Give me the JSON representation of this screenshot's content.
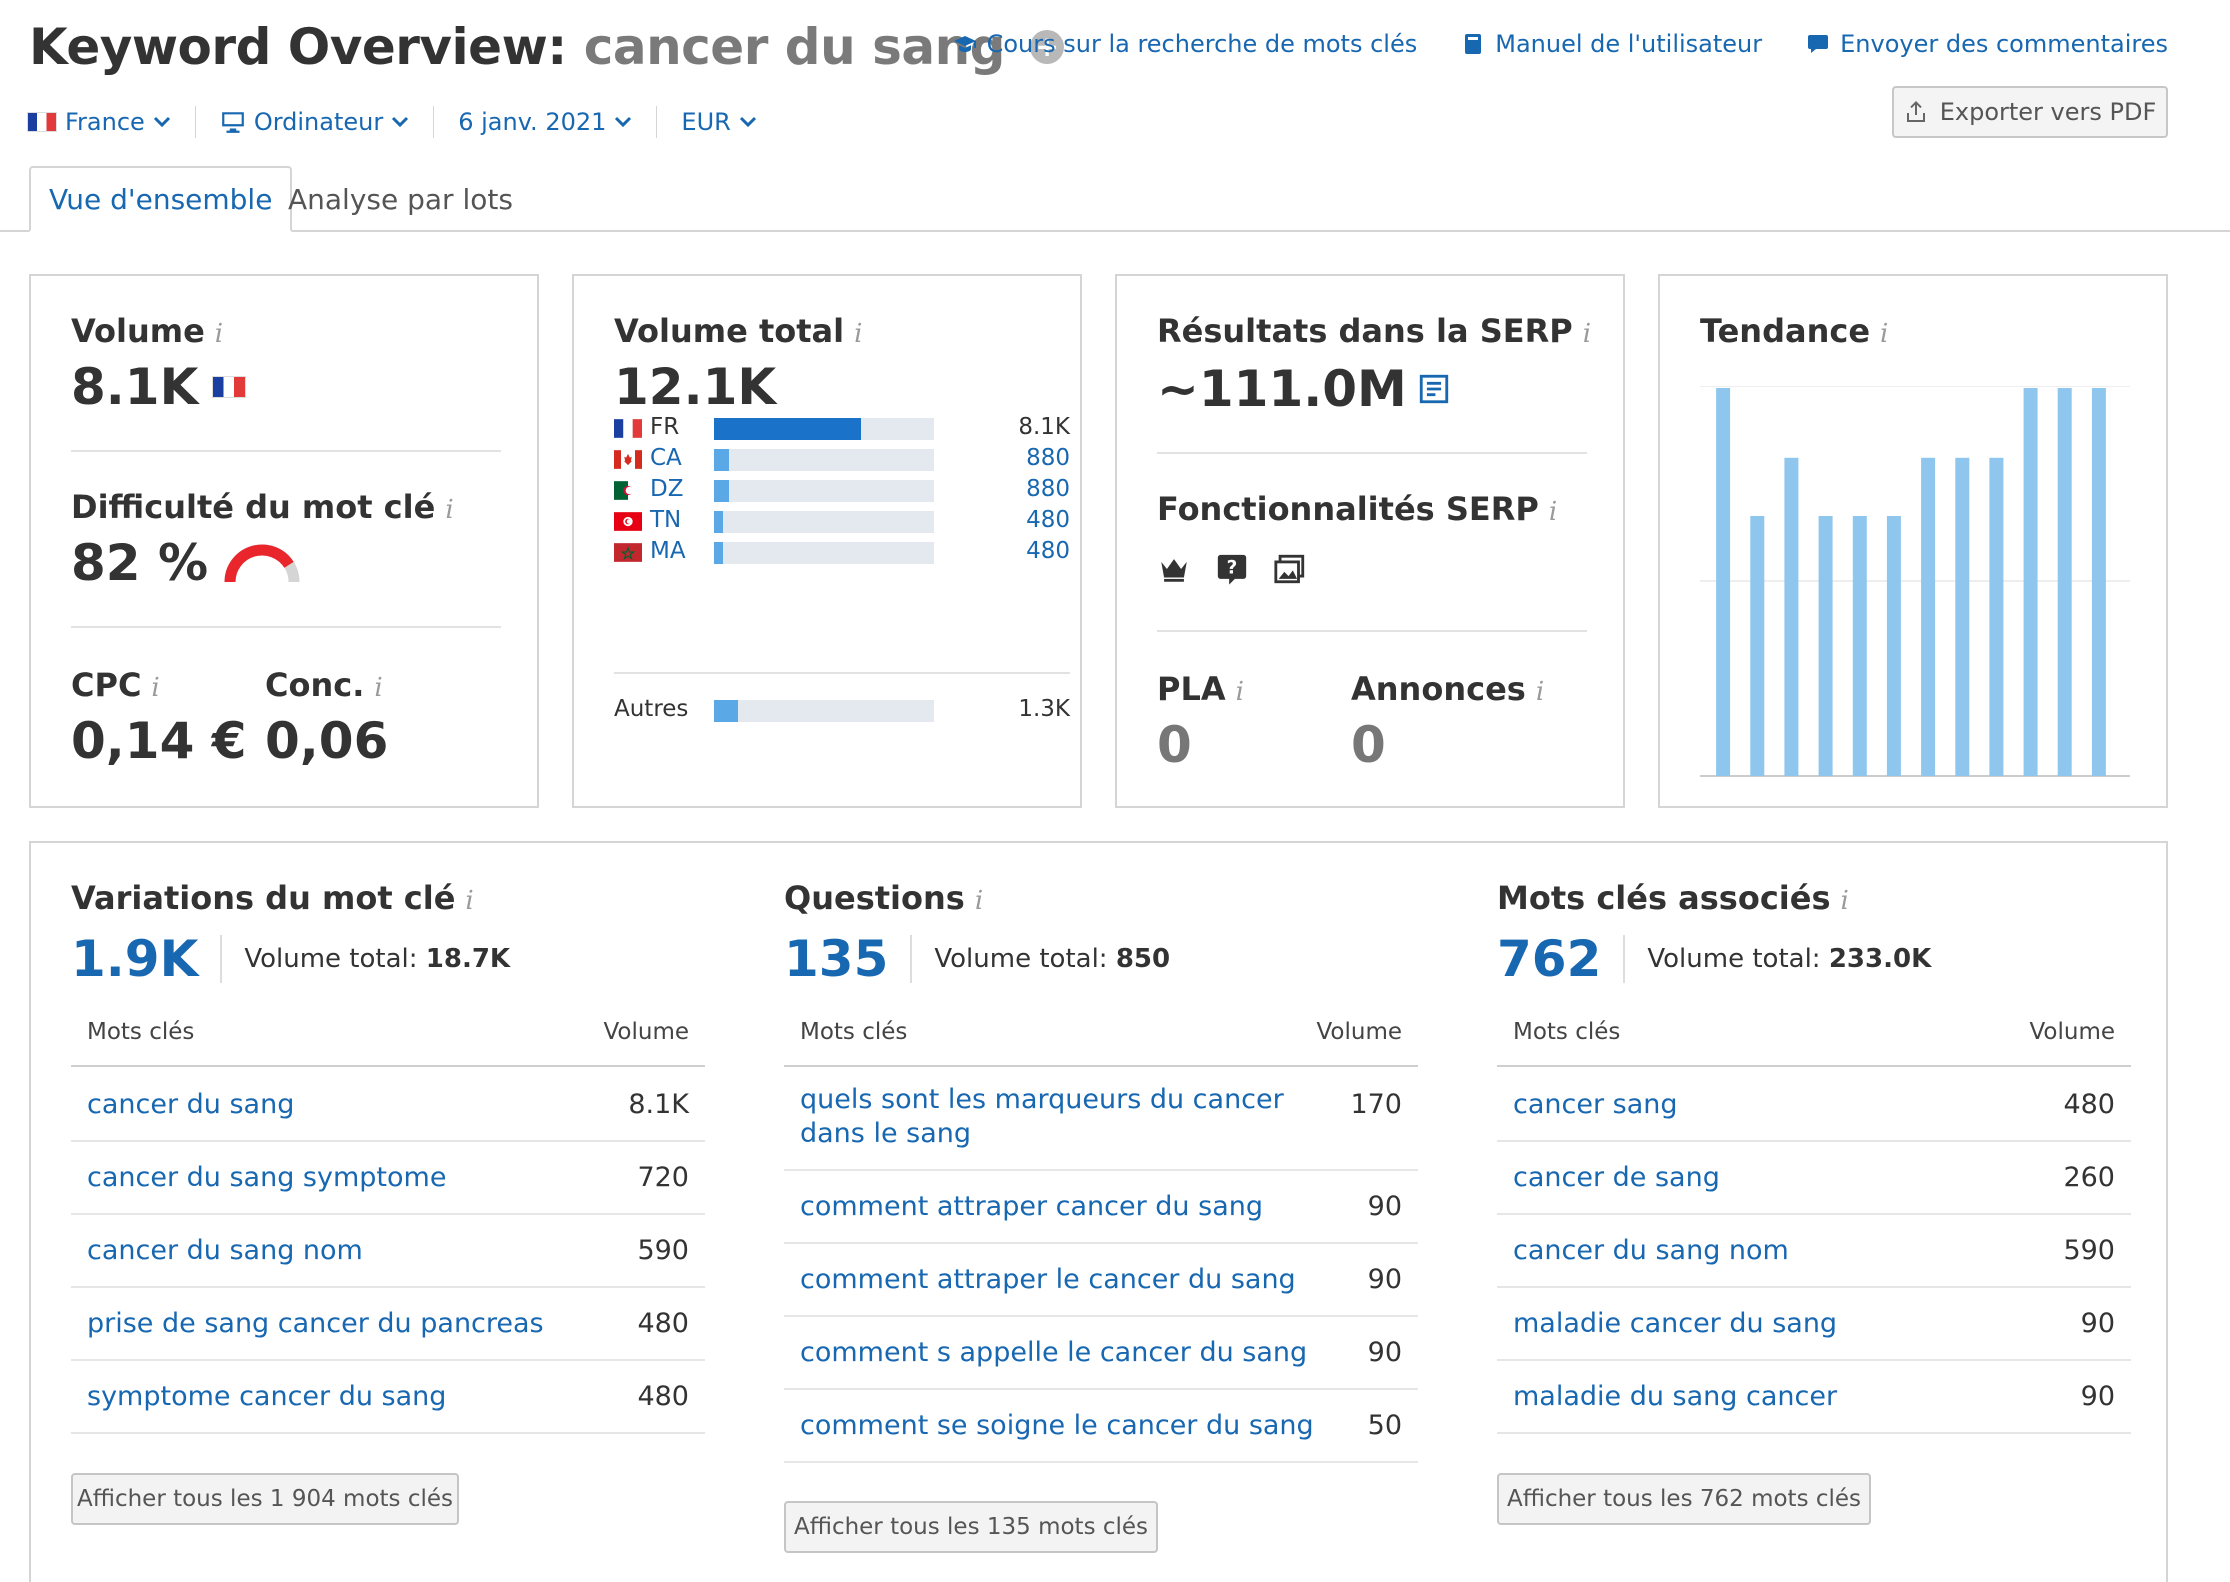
{
  "header": {
    "title_prefix": "Keyword Overview:",
    "keyword": "cancer du sang",
    "add_symbol": "+",
    "links": [
      {
        "label": "Cours sur la recherche de mots clés",
        "icon": "graduation-cap-icon"
      },
      {
        "label": "Manuel de l'utilisateur",
        "icon": "book-icon"
      },
      {
        "label": "Envoyer des commentaires",
        "icon": "speech-bubble-icon"
      }
    ],
    "export_label": "Exporter vers PDF"
  },
  "filters": {
    "country": "France",
    "device": "Ordinateur",
    "date": "6 janv. 2021",
    "currency": "EUR"
  },
  "tabs": [
    {
      "label": "Vue d'ensemble",
      "active": true
    },
    {
      "label": "Analyse par lots",
      "active": false
    }
  ],
  "volume_card": {
    "volume_label": "Volume",
    "volume_value": "8.1K",
    "difficulty_label": "Difficulté du mot clé",
    "difficulty_value": "82 %",
    "difficulty_percent": 82,
    "cpc_label": "CPC",
    "cpc_value": "0,14 €",
    "conc_label": "Conc.",
    "conc_value": "0,06"
  },
  "total_volume_card": {
    "label": "Volume total",
    "value": "12.1K",
    "countries": [
      {
        "code": "FR",
        "value": "8.1K",
        "share": 0.67,
        "flag": "flag-fr"
      },
      {
        "code": "CA",
        "value": "880",
        "share": 0.07,
        "flag": "flag-ca"
      },
      {
        "code": "DZ",
        "value": "880",
        "share": 0.07,
        "flag": "flag-dz"
      },
      {
        "code": "TN",
        "value": "480",
        "share": 0.04,
        "flag": "flag-tn"
      },
      {
        "code": "MA",
        "value": "480",
        "share": 0.04,
        "flag": "flag-ma"
      }
    ],
    "others": {
      "label": "Autres",
      "value": "1.3K",
      "share": 0.11
    }
  },
  "serp_card": {
    "results_label": "Résultats dans la SERP",
    "results_value": "~111.0M",
    "features_label": "Fonctionnalités SERP",
    "feature_icons": [
      "crown-icon",
      "question-icon",
      "image-icon"
    ],
    "pla_label": "PLA",
    "pla_value": "0",
    "ads_label": "Annonces",
    "ads_value": "0"
  },
  "trend_card": {
    "label": "Tendance",
    "bar_color": "#8fc6ee"
  },
  "chart_data": {
    "type": "bar",
    "values": [
      1.0,
      0.67,
      0.82,
      0.67,
      0.67,
      0.67,
      0.82,
      0.82,
      0.82,
      1.0,
      1.0,
      1.0
    ],
    "ylim": [
      0,
      1
    ]
  },
  "variations": {
    "title": "Variations du mot clé",
    "count": "1.9K",
    "total_label": "Volume total:",
    "total_value": "18.7K",
    "col_kw": "Mots clés",
    "col_vol": "Volume",
    "rows": [
      {
        "kw": "cancer du sang",
        "v": "8.1K"
      },
      {
        "kw": "cancer du sang symptome",
        "v": "720"
      },
      {
        "kw": "cancer du sang nom",
        "v": "590"
      },
      {
        "kw": "prise de sang cancer du pancreas",
        "v": "480"
      },
      {
        "kw": "symptome cancer du sang",
        "v": "480"
      }
    ],
    "button": "Afficher tous les 1 904 mots clés"
  },
  "questions": {
    "title": "Questions",
    "count": "135",
    "total_label": "Volume total:",
    "total_value": "850",
    "col_kw": "Mots clés",
    "col_vol": "Volume",
    "rows": [
      {
        "kw": "quels sont les marqueurs du cancer",
        "kw2": "dans le sang",
        "v": "170"
      },
      {
        "kw": "comment attraper cancer du sang",
        "v": "90"
      },
      {
        "kw": "comment attraper le cancer du sang",
        "v": "90"
      },
      {
        "kw": "comment s appelle le cancer du sang",
        "v": "90"
      },
      {
        "kw": "comment se soigne le cancer du sang",
        "v": "50"
      }
    ],
    "button": "Afficher tous les 135 mots clés"
  },
  "related": {
    "title": "Mots clés associés",
    "count": "762",
    "total_label": "Volume total:",
    "total_value": "233.0K",
    "col_kw": "Mots clés",
    "col_vol": "Volume",
    "rows": [
      {
        "kw": "cancer sang",
        "v": "480"
      },
      {
        "kw": "cancer de sang",
        "v": "260"
      },
      {
        "kw": "cancer du sang nom",
        "v": "590"
      },
      {
        "kw": "maladie cancer du sang",
        "v": "90"
      },
      {
        "kw": "maladie du sang cancer",
        "v": "90"
      }
    ],
    "button": "Afficher tous les 762 mots clés"
  }
}
